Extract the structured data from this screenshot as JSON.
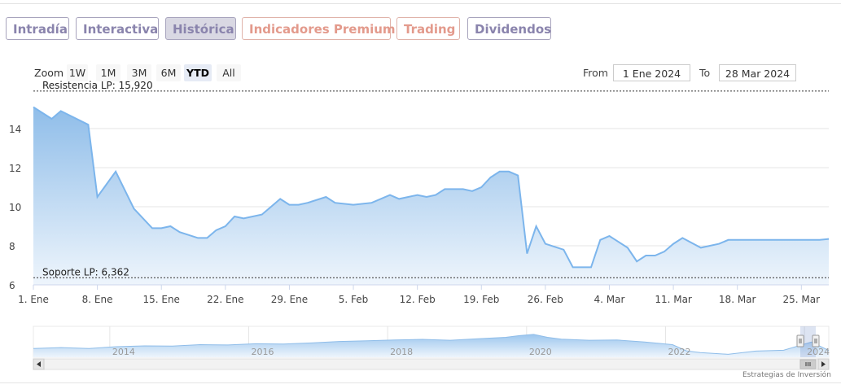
{
  "tabs": [
    {
      "label": "Intradía",
      "style": "violet"
    },
    {
      "label": "Interactiva",
      "style": "violet"
    },
    {
      "label": "Histórica",
      "style": "active"
    },
    {
      "label": "Indicadores Premium",
      "style": "salmon"
    },
    {
      "label": "Trading",
      "style": "salmon"
    },
    {
      "label": "Dividendos",
      "style": "violet"
    }
  ],
  "range_selector": {
    "zoom_label": "Zoom",
    "buttons": [
      "1W",
      "1M",
      "3M",
      "6M",
      "YTD",
      "All"
    ],
    "selected": "YTD",
    "from_label": "From",
    "from_value": "1 Ene 2024",
    "to_label": "To",
    "to_value": "28 Mar 2024"
  },
  "credit": "Estrategias de Inversión",
  "colors": {
    "line": "#7cb5ec",
    "area_top": "#8fbde9",
    "area_bottom": "#eef5fc",
    "tab_violet": "#8a84ad",
    "tab_salmon": "#e39a8c"
  },
  "chart_data": [
    {
      "type": "area",
      "title": "",
      "xlabel": "",
      "ylabel": "",
      "x_ticks": [
        "1. Ene",
        "8. Ene",
        "15. Ene",
        "22. Ene",
        "29. Ene",
        "5. Feb",
        "12. Feb",
        "19. Feb",
        "26. Feb",
        "4. Mar",
        "11. Mar",
        "18. Mar",
        "25. Mar"
      ],
      "y_ticks": [
        6,
        8,
        10,
        12,
        14
      ],
      "ylim": [
        6,
        16
      ],
      "grid": true,
      "plot_lines": [
        {
          "label": "Resistencia LP: 15,920",
          "value": 15.92
        },
        {
          "label": "Soporte LP: 6,362",
          "value": 6.362
        }
      ],
      "series": [
        {
          "x": [
            "2024-01-01",
            "2024-01-03",
            "2024-01-04",
            "2024-01-07",
            "2024-01-08",
            "2024-01-10",
            "2024-01-12",
            "2024-01-14",
            "2024-01-15",
            "2024-01-16",
            "2024-01-17",
            "2024-01-19",
            "2024-01-20",
            "2024-01-21",
            "2024-01-22",
            "2024-01-23",
            "2024-01-24",
            "2024-01-26",
            "2024-01-27",
            "2024-01-28",
            "2024-01-29",
            "2024-01-30",
            "2024-01-31",
            "2024-02-02",
            "2024-02-03",
            "2024-02-05",
            "2024-02-07",
            "2024-02-09",
            "2024-02-10",
            "2024-02-12",
            "2024-02-13",
            "2024-02-14",
            "2024-02-15",
            "2024-02-17",
            "2024-02-18",
            "2024-02-19",
            "2024-02-20",
            "2024-02-21",
            "2024-02-22",
            "2024-02-23",
            "2024-02-24",
            "2024-02-25",
            "2024-02-26",
            "2024-02-28",
            "2024-02-29",
            "2024-03-02",
            "2024-03-03",
            "2024-03-04",
            "2024-03-05",
            "2024-03-06",
            "2024-03-07",
            "2024-03-08",
            "2024-03-09",
            "2024-03-10",
            "2024-03-11",
            "2024-03-12",
            "2024-03-14",
            "2024-03-16",
            "2024-03-17",
            "2024-03-18",
            "2024-03-19",
            "2024-03-20",
            "2024-03-21",
            "2024-03-23",
            "2024-03-24",
            "2024-03-25",
            "2024-03-26",
            "2024-03-27",
            "2024-03-28"
          ],
          "values": [
            15.1,
            14.5,
            14.9,
            14.2,
            10.5,
            11.8,
            9.9,
            8.9,
            8.9,
            9.0,
            8.7,
            8.4,
            8.4,
            8.8,
            9.0,
            9.5,
            9.4,
            9.6,
            10.0,
            10.4,
            10.1,
            10.1,
            10.2,
            10.5,
            10.2,
            10.1,
            10.2,
            10.6,
            10.4,
            10.6,
            10.5,
            10.6,
            10.9,
            10.9,
            10.8,
            11.0,
            11.5,
            11.8,
            11.8,
            11.6,
            7.6,
            9.0,
            8.1,
            7.8,
            6.9,
            6.9,
            8.3,
            8.5,
            8.2,
            7.9,
            7.2,
            7.5,
            7.5,
            7.7,
            8.1,
            8.4,
            7.9,
            8.1,
            8.3,
            8.3,
            8.3,
            8.3,
            8.3,
            8.3,
            8.3,
            8.3,
            8.3,
            8.3,
            8.35
          ]
        }
      ]
    },
    {
      "type": "area",
      "title": "",
      "x_ticks": [
        "2014",
        "2016",
        "2018",
        "2020",
        "2022",
        "2024"
      ],
      "series": [
        {
          "x": [
            2012.8,
            2013.2,
            2013.6,
            2014.0,
            2014.4,
            2014.8,
            2015.2,
            2015.6,
            2016.0,
            2016.4,
            2016.8,
            2017.2,
            2017.6,
            2018.0,
            2018.4,
            2018.8,
            2019.2,
            2019.6,
            2019.8,
            2020.0,
            2020.2,
            2020.4,
            2020.8,
            2021.2,
            2021.6,
            2022.0,
            2022.2,
            2022.4,
            2022.8,
            2023.2,
            2023.6,
            2024.0,
            2024.25
          ],
          "values": [
            9.0,
            9.3,
            9.0,
            9.6,
            9.9,
            9.8,
            10.3,
            10.2,
            10.6,
            10.5,
            10.9,
            11.4,
            11.6,
            11.9,
            12.1,
            11.8,
            12.3,
            12.8,
            13.4,
            13.8,
            12.8,
            12.2,
            11.8,
            11.9,
            11.2,
            10.3,
            8.2,
            7.6,
            7.0,
            8.1,
            8.4,
            11.2,
            8.3
          ]
        }
      ]
    }
  ]
}
